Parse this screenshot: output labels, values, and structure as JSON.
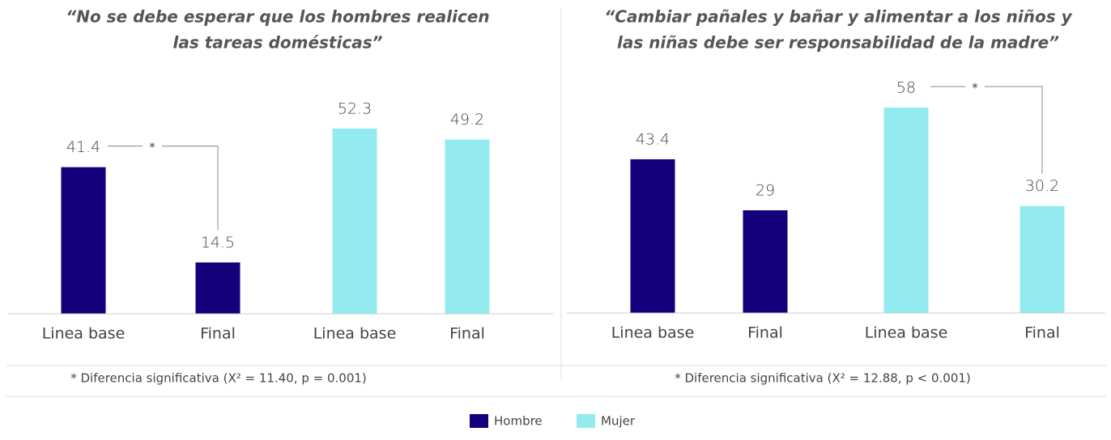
{
  "chart_data": [
    {
      "type": "bar",
      "title": [
        "“No se debe esperar que los hombres realicen",
        "las tareas domésticas”"
      ],
      "categories": [
        "Linea base",
        "Final",
        "Linea base",
        "Final"
      ],
      "series": [
        {
          "name": "Hombre",
          "color": "#14007a",
          "values": [
            41.4,
            14.5,
            null,
            null
          ]
        },
        {
          "name": "Mujer",
          "color": "#93ebf0",
          "values": [
            null,
            null,
            52.3,
            49.2
          ]
        }
      ],
      "significance_marker": "*",
      "footnote": "* Diferencia significativa (X² = 11.40, p = 0.001)"
    },
    {
      "type": "bar",
      "title": [
        "“Cambiar pañales y bañar y alimentar a los niños y",
        "las niñas debe ser responsabilidad de la madre”"
      ],
      "categories": [
        "Linea base",
        "Final",
        "Linea base",
        "Final"
      ],
      "series": [
        {
          "name": "Hombre",
          "color": "#14007a",
          "values": [
            43.4,
            29,
            null,
            null
          ]
        },
        {
          "name": "Mujer",
          "color": "#93ebf0",
          "values": [
            null,
            null,
            58,
            30.2
          ]
        }
      ],
      "significance_marker": "*",
      "footnote": "* Diferencia significativa (X² = 12.88, p < 0.001)"
    }
  ]
}
